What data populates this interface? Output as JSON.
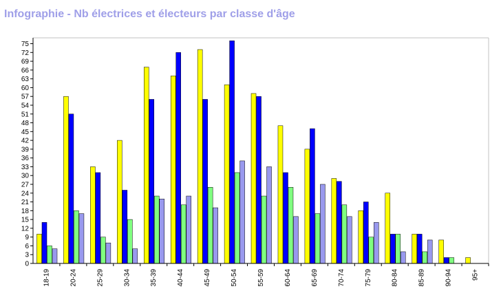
{
  "title": "Infographie - Nb électrices et électeurs par classe d'âge",
  "chart_data": {
    "type": "bar",
    "title": "Infographie - Nb électrices et électeurs par classe d'âge",
    "categories": [
      "18-19",
      "20-24",
      "25-29",
      "30-34",
      "35-39",
      "40-44",
      "45-49",
      "50-54",
      "55-59",
      "60-64",
      "65-69",
      "70-74",
      "75-79",
      "80-84",
      "85-89",
      "90-94",
      "95+"
    ],
    "series": [
      {
        "color": "#ffff00",
        "values": [
          10,
          57,
          33,
          42,
          67,
          64,
          73,
          61,
          58,
          47,
          39,
          29,
          18,
          24,
          10,
          8,
          2
        ]
      },
      {
        "color": "#0000ff",
        "values": [
          14,
          51,
          31,
          25,
          56,
          72,
          56,
          76,
          57,
          31,
          46,
          28,
          21,
          10,
          10,
          2,
          0
        ]
      },
      {
        "color": "#80ff80",
        "values": [
          6,
          18,
          9,
          15,
          23,
          20,
          26,
          31,
          23,
          26,
          17,
          20,
          9,
          10,
          4,
          2,
          0
        ]
      },
      {
        "color": "#9999ee",
        "values": [
          5,
          17,
          7,
          5,
          22,
          23,
          19,
          35,
          33,
          16,
          27,
          16,
          14,
          4,
          8,
          0,
          0
        ]
      }
    ],
    "ylim": [
      0,
      77
    ],
    "yticks": [
      0,
      3,
      6,
      9,
      12,
      15,
      18,
      21,
      24,
      27,
      30,
      33,
      36,
      39,
      42,
      45,
      48,
      51,
      54,
      57,
      60,
      63,
      66,
      69,
      72,
      75
    ],
    "grid": false
  }
}
